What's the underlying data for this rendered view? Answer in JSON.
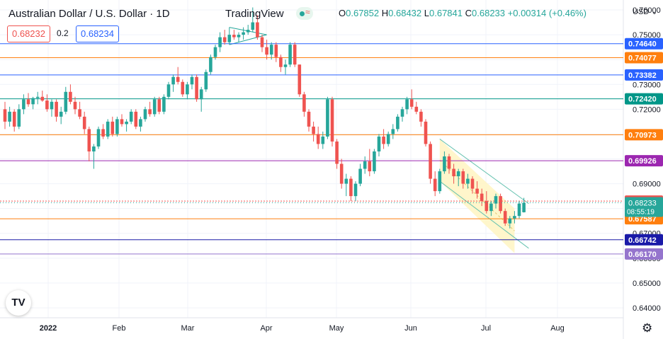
{
  "header": {
    "symbol_title": "Australian Dollar / U.S. Dollar · 1D",
    "brand": "TradingView",
    "ohlc": {
      "o_label": "O",
      "o": "0.67852",
      "h_label": "H",
      "h": "0.68432",
      "l_label": "L",
      "l": "0.67841",
      "c_label": "C",
      "c": "0.68233",
      "change": "+0.00314 (+0.46%)"
    },
    "bid": "0.68232",
    "spread": "0.2",
    "ask": "0.68234",
    "currency": "USD"
  },
  "icons": {
    "logo": "tradingview-logo-icon",
    "settings": "gear-icon",
    "currency_menu": "chevron-down-icon"
  },
  "colors": {
    "up": "#26a69a",
    "down": "#ef5350",
    "orange": "#ff7f0e",
    "blue": "#2962ff",
    "teal": "#009688",
    "purple": "#9c27b0",
    "navy": "#1a1aa8"
  },
  "chart_data": {
    "type": "candlestick",
    "symbol": "AUDUSD",
    "interval": "1D",
    "ylim": [
      0.636,
      0.764
    ],
    "y_ticks": [
      "0.76000",
      "0.75000",
      "0.74000",
      "0.73000",
      "0.72000",
      "0.71000",
      "0.70000",
      "0.69000",
      "0.68000",
      "0.67000",
      "0.66000",
      "0.65000",
      "0.64000"
    ],
    "x_ticks": [
      "2022",
      "Feb",
      "Mar",
      "Apr",
      "May",
      "Jun",
      "Jul",
      "Aug"
    ],
    "horizontal_levels": [
      {
        "price": 0.7464,
        "label": "0.74640",
        "color": "#2962ff",
        "style": "solid"
      },
      {
        "price": 0.74077,
        "label": "0.74077",
        "color": "#ff7f0e",
        "style": "solid"
      },
      {
        "price": 0.73382,
        "label": "0.73382",
        "color": "#2962ff",
        "style": "solid"
      },
      {
        "price": 0.7242,
        "label": "0.72420",
        "color": "#009688",
        "style": "solid"
      },
      {
        "price": 0.70973,
        "label": "0.70973",
        "color": "#ff7f0e",
        "style": "solid"
      },
      {
        "price": 0.69926,
        "label": "0.69926",
        "color": "#9c27b0",
        "style": "solid"
      },
      {
        "price": 0.68302,
        "label": "0.68302",
        "color": "#ef5350",
        "style": "dotted"
      },
      {
        "price": 0.67587,
        "label": "0.67587",
        "color": "#ff7f0e",
        "style": "solid"
      },
      {
        "price": 0.66742,
        "label": "0.66742",
        "color": "#1a1aa8",
        "style": "solid"
      },
      {
        "price": 0.6617,
        "label": "0.66170",
        "color": "#9575cd",
        "style": "solid"
      }
    ],
    "last_price": {
      "price": "0.68233",
      "countdown": "08:55:19",
      "color": "#26a69a"
    },
    "candles": [
      [
        0.72,
        0.723,
        0.712,
        0.715
      ],
      [
        0.715,
        0.721,
        0.713,
        0.719
      ],
      [
        0.719,
        0.72,
        0.711,
        0.713
      ],
      [
        0.713,
        0.722,
        0.712,
        0.72
      ],
      [
        0.72,
        0.726,
        0.718,
        0.724
      ],
      [
        0.724,
        0.7265,
        0.721,
        0.722
      ],
      [
        0.722,
        0.725,
        0.72,
        0.7245
      ],
      [
        0.7245,
        0.727,
        0.722,
        0.725
      ],
      [
        0.725,
        0.7275,
        0.723,
        0.7235
      ],
      [
        0.7235,
        0.726,
        0.719,
        0.72
      ],
      [
        0.72,
        0.724,
        0.717,
        0.723
      ],
      [
        0.723,
        0.724,
        0.715,
        0.717
      ],
      [
        0.717,
        0.721,
        0.714,
        0.719
      ],
      [
        0.719,
        0.729,
        0.718,
        0.727
      ],
      [
        0.727,
        0.73,
        0.722,
        0.723
      ],
      [
        0.723,
        0.725,
        0.718,
        0.72
      ],
      [
        0.72,
        0.723,
        0.716,
        0.717
      ],
      [
        0.717,
        0.719,
        0.71,
        0.712
      ],
      [
        0.712,
        0.713,
        0.699,
        0.703
      ],
      [
        0.703,
        0.706,
        0.696,
        0.705
      ],
      [
        0.705,
        0.713,
        0.704,
        0.712
      ],
      [
        0.712,
        0.714,
        0.708,
        0.709
      ],
      [
        0.709,
        0.716,
        0.708,
        0.715
      ],
      [
        0.715,
        0.717,
        0.709,
        0.71
      ],
      [
        0.71,
        0.717,
        0.709,
        0.716
      ],
      [
        0.716,
        0.718,
        0.713,
        0.714
      ],
      [
        0.714,
        0.716,
        0.711,
        0.715
      ],
      [
        0.715,
        0.72,
        0.714,
        0.719
      ],
      [
        0.719,
        0.72,
        0.712,
        0.713
      ],
      [
        0.713,
        0.717,
        0.711,
        0.716
      ],
      [
        0.716,
        0.721,
        0.715,
        0.72
      ],
      [
        0.72,
        0.723,
        0.717,
        0.718
      ],
      [
        0.718,
        0.725,
        0.717,
        0.724
      ],
      [
        0.724,
        0.725,
        0.718,
        0.719
      ],
      [
        0.719,
        0.726,
        0.718,
        0.725
      ],
      [
        0.725,
        0.731,
        0.724,
        0.73
      ],
      [
        0.73,
        0.734,
        0.727,
        0.733
      ],
      [
        0.733,
        0.737,
        0.73,
        0.731
      ],
      [
        0.731,
        0.732,
        0.725,
        0.726
      ],
      [
        0.726,
        0.731,
        0.724,
        0.73
      ],
      [
        0.73,
        0.734,
        0.728,
        0.733
      ],
      [
        0.733,
        0.734,
        0.723,
        0.724
      ],
      [
        0.724,
        0.729,
        0.719,
        0.728
      ],
      [
        0.728,
        0.736,
        0.727,
        0.735
      ],
      [
        0.735,
        0.742,
        0.734,
        0.741
      ],
      [
        0.741,
        0.746,
        0.74,
        0.745
      ],
      [
        0.745,
        0.751,
        0.743,
        0.749
      ],
      [
        0.749,
        0.752,
        0.746,
        0.747
      ],
      [
        0.747,
        0.753,
        0.746,
        0.75
      ],
      [
        0.75,
        0.752,
        0.748,
        0.749
      ],
      [
        0.749,
        0.751,
        0.747,
        0.75
      ],
      [
        0.75,
        0.753,
        0.748,
        0.751
      ],
      [
        0.751,
        0.754,
        0.75,
        0.752
      ],
      [
        0.752,
        0.761,
        0.751,
        0.755
      ],
      [
        0.755,
        0.758,
        0.748,
        0.749
      ],
      [
        0.749,
        0.75,
        0.743,
        0.745
      ],
      [
        0.745,
        0.748,
        0.74,
        0.742
      ],
      [
        0.742,
        0.747,
        0.74,
        0.746
      ],
      [
        0.746,
        0.747,
        0.739,
        0.741
      ],
      [
        0.741,
        0.742,
        0.735,
        0.737
      ],
      [
        0.737,
        0.74,
        0.734,
        0.738
      ],
      [
        0.738,
        0.747,
        0.737,
        0.746
      ],
      [
        0.746,
        0.747,
        0.737,
        0.738
      ],
      [
        0.738,
        0.738,
        0.725,
        0.726
      ],
      [
        0.726,
        0.727,
        0.717,
        0.719
      ],
      [
        0.719,
        0.72,
        0.711,
        0.713
      ],
      [
        0.713,
        0.715,
        0.707,
        0.71
      ],
      [
        0.71,
        0.713,
        0.704,
        0.706
      ],
      [
        0.706,
        0.711,
        0.704,
        0.709
      ],
      [
        0.709,
        0.725,
        0.708,
        0.724
      ],
      [
        0.724,
        0.725,
        0.705,
        0.707
      ],
      [
        0.707,
        0.708,
        0.696,
        0.698
      ],
      [
        0.698,
        0.7,
        0.688,
        0.69
      ],
      [
        0.69,
        0.694,
        0.685,
        0.692
      ],
      [
        0.692,
        0.693,
        0.683,
        0.685
      ],
      [
        0.685,
        0.691,
        0.683,
        0.69
      ],
      [
        0.69,
        0.698,
        0.689,
        0.696
      ],
      [
        0.696,
        0.701,
        0.694,
        0.699
      ],
      [
        0.699,
        0.704,
        0.693,
        0.695
      ],
      [
        0.695,
        0.704,
        0.694,
        0.703
      ],
      [
        0.703,
        0.71,
        0.701,
        0.709
      ],
      [
        0.709,
        0.712,
        0.704,
        0.706
      ],
      [
        0.706,
        0.711,
        0.705,
        0.71
      ],
      [
        0.71,
        0.714,
        0.708,
        0.712
      ],
      [
        0.712,
        0.718,
        0.711,
        0.717
      ],
      [
        0.717,
        0.721,
        0.715,
        0.72
      ],
      [
        0.72,
        0.725,
        0.718,
        0.724
      ],
      [
        0.724,
        0.728,
        0.72,
        0.721
      ],
      [
        0.721,
        0.723,
        0.718,
        0.719
      ],
      [
        0.719,
        0.72,
        0.713,
        0.715
      ],
      [
        0.715,
        0.716,
        0.705,
        0.706
      ],
      [
        0.706,
        0.707,
        0.69,
        0.692
      ],
      [
        0.692,
        0.695,
        0.685,
        0.687
      ],
      [
        0.687,
        0.696,
        0.686,
        0.695
      ],
      [
        0.695,
        0.703,
        0.694,
        0.701
      ],
      [
        0.701,
        0.702,
        0.694,
        0.696
      ],
      [
        0.696,
        0.698,
        0.69,
        0.693
      ],
      [
        0.693,
        0.696,
        0.689,
        0.695
      ],
      [
        0.695,
        0.696,
        0.688,
        0.69
      ],
      [
        0.69,
        0.694,
        0.688,
        0.692
      ],
      [
        0.692,
        0.693,
        0.686,
        0.688
      ],
      [
        0.688,
        0.691,
        0.684,
        0.686
      ],
      [
        0.686,
        0.688,
        0.681,
        0.683
      ],
      [
        0.683,
        0.687,
        0.678,
        0.679
      ],
      [
        0.679,
        0.683,
        0.677,
        0.682
      ],
      [
        0.682,
        0.686,
        0.68,
        0.685
      ],
      [
        0.685,
        0.686,
        0.678,
        0.679
      ],
      [
        0.679,
        0.68,
        0.673,
        0.674
      ],
      [
        0.674,
        0.677,
        0.672,
        0.676
      ],
      [
        0.676,
        0.679,
        0.674,
        0.677
      ],
      [
        0.677,
        0.683,
        0.676,
        0.682
      ],
      [
        0.6785,
        0.6843,
        0.6784,
        0.6823
      ]
    ],
    "channel": {
      "upper": [
        [
          93,
          0.708
        ],
        [
          109,
          0.68
        ]
      ],
      "lower": [
        [
          93,
          0.691
        ],
        [
          109,
          0.662
        ]
      ],
      "shaded": true
    },
    "triangle_pattern": {
      "from": [
        48,
        0.746
      ],
      "to": [
        56,
        0.75
      ],
      "top": [
        [
          48,
          0.753
        ],
        [
          56,
          0.751
        ]
      ]
    },
    "grid": true,
    "legend": "none"
  }
}
